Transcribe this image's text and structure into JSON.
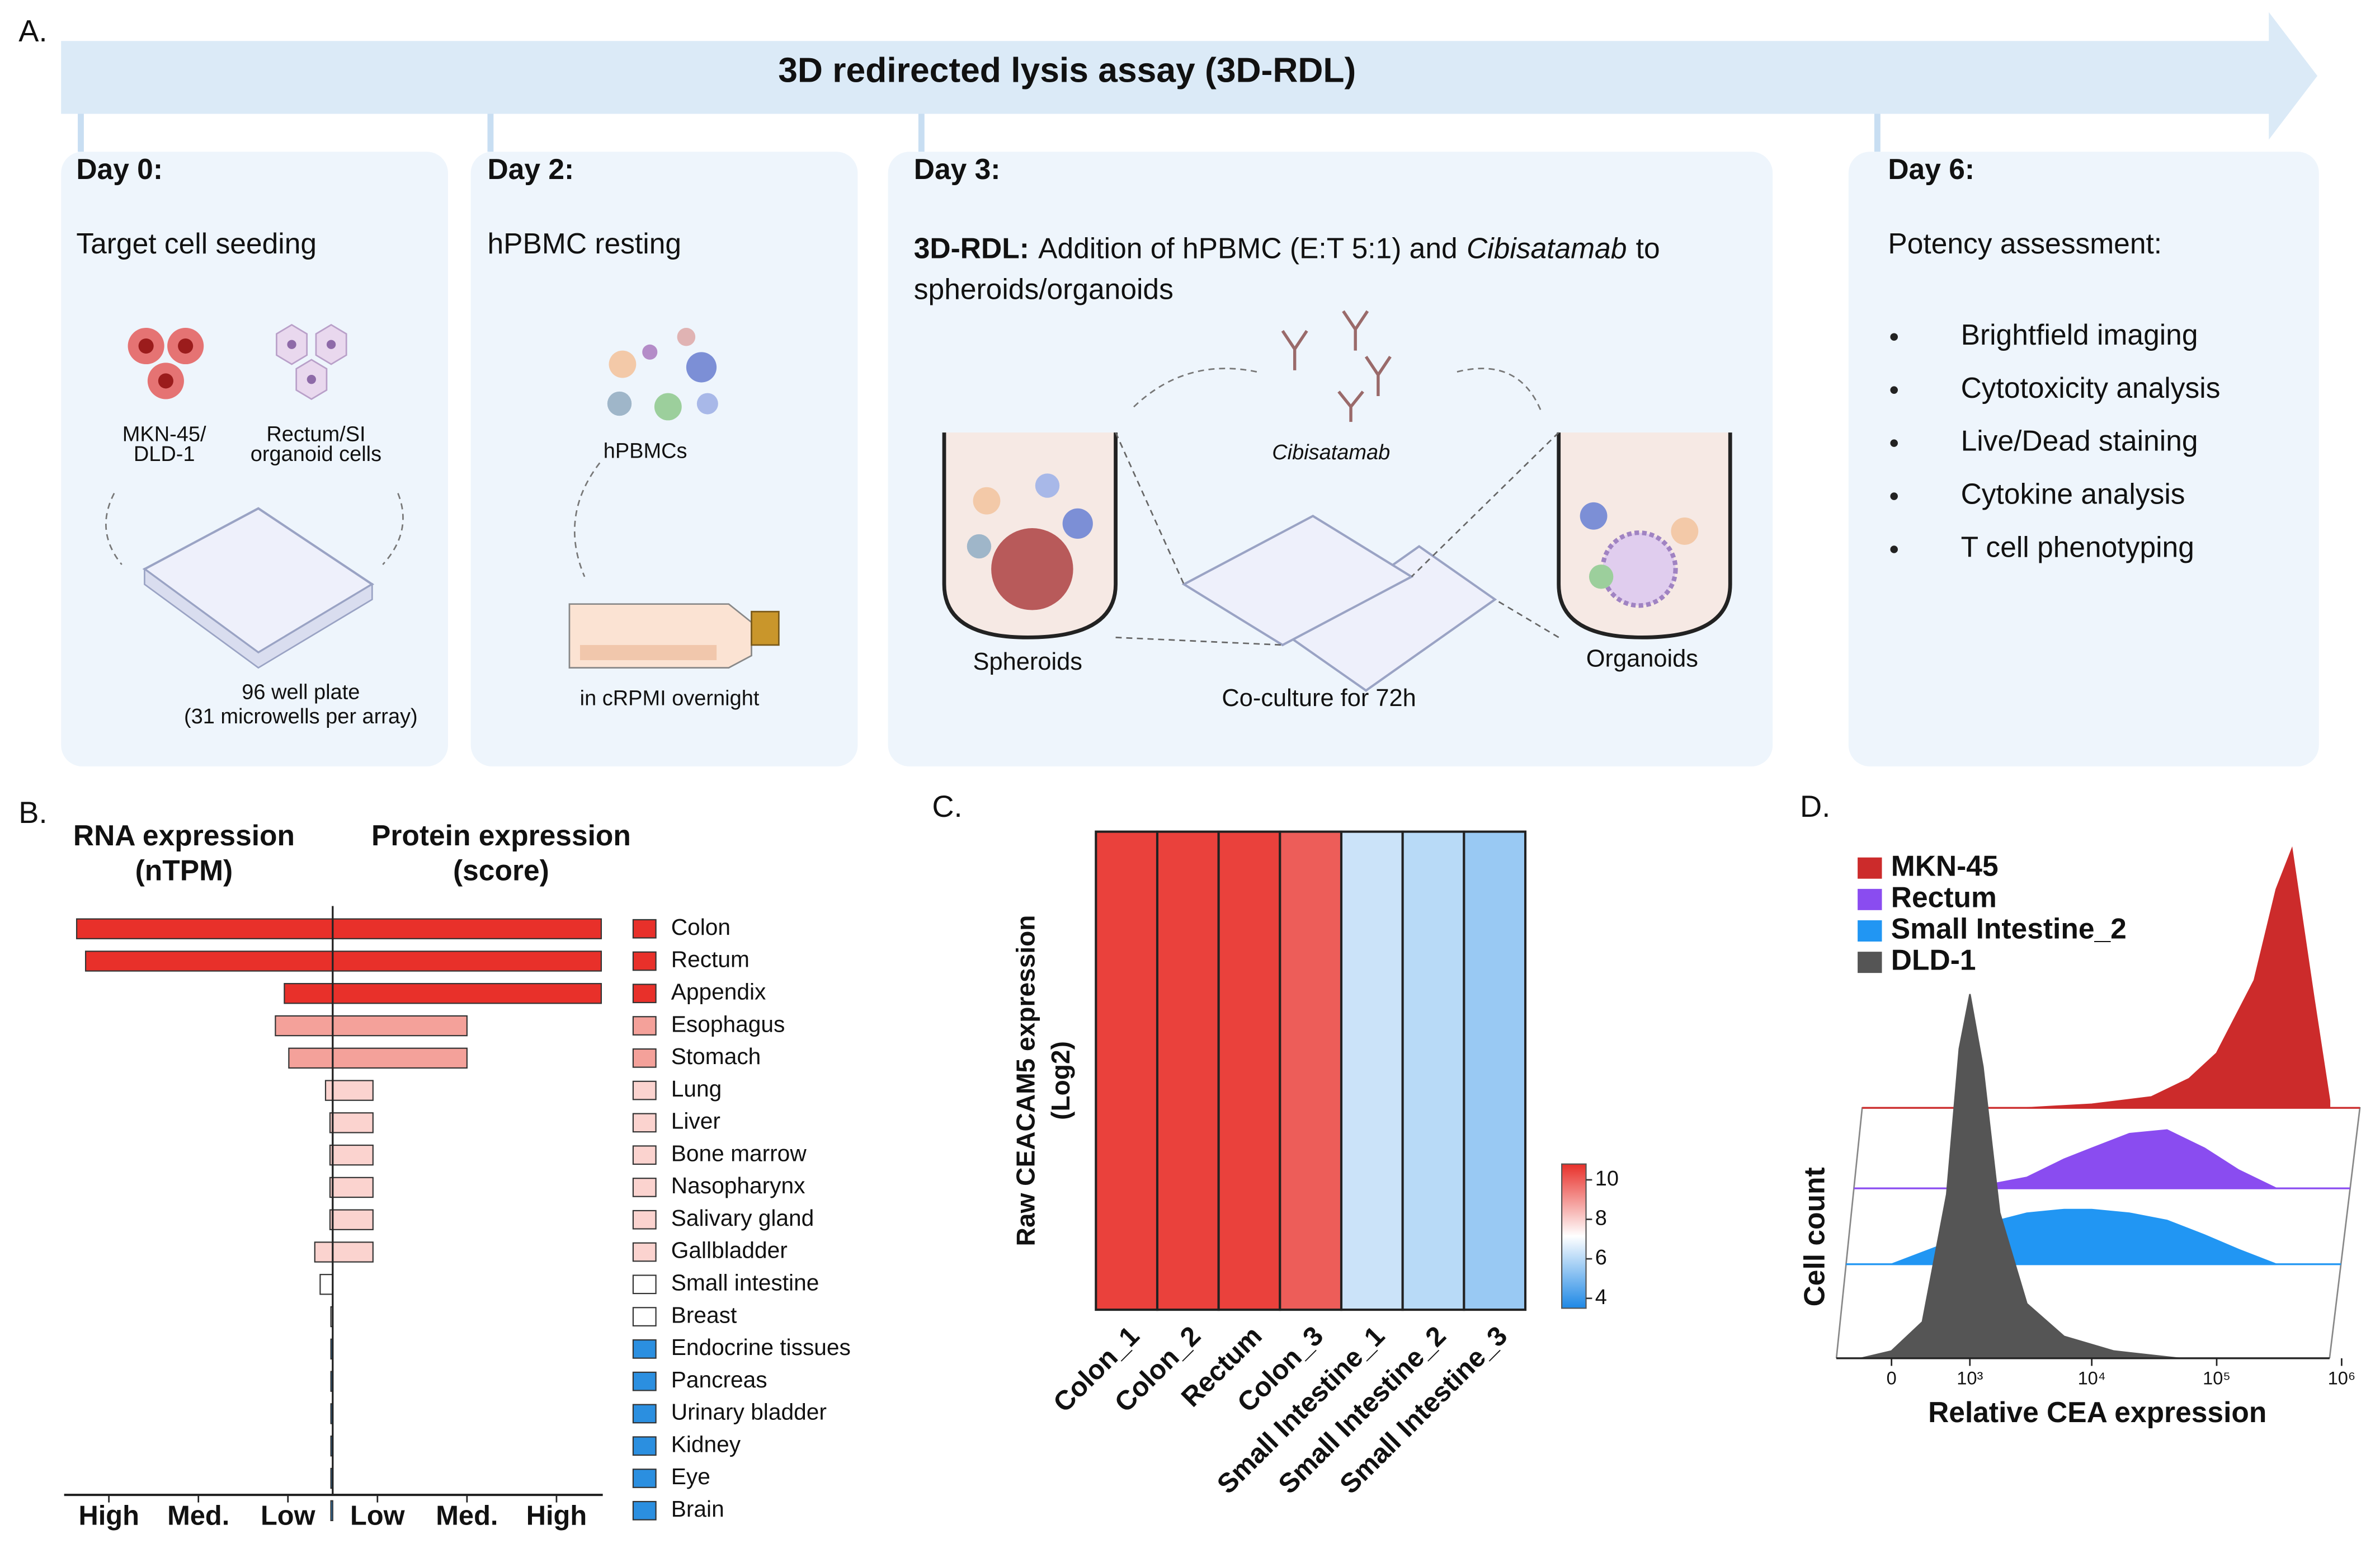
{
  "figure": {
    "panel_label": "A.",
    "title": "3D redirected lysis assay (3D-RDL)",
    "steps": [
      {
        "day": "Day 0:",
        "task": "Target cell seeding",
        "captions": [
          "MKN-45/",
          "DLD-1",
          "Rectum/SI",
          "organoid cells",
          "96 well plate",
          "(31 microwells per array)"
        ]
      },
      {
        "day": "Day 2:",
        "task": "hPBMC resting",
        "captions": [
          "hPBMCs",
          "in cRPMI overnight"
        ]
      },
      {
        "day": "Day 3:",
        "task_lead": "3D-RDL:",
        "task_parts": [
          "Addition of hPBMC (E:T 5:1) and",
          "Cibisatamab",
          "to",
          "spheroids/organoids"
        ],
        "captions": [
          "Cibisatamab",
          "Spheroids",
          "Co-culture for 72h",
          "Organoids"
        ]
      },
      {
        "day": "Day 6:",
        "task": "Potency assessment:",
        "items": [
          "Brightfield imaging",
          "Cytotoxicity analysis",
          "Live/Dead staining",
          "Cytokine analysis",
          "T cell phenotyping"
        ]
      }
    ]
  },
  "chart_data": [
    {
      "type": "bar",
      "panel_label": "B.",
      "categories": [
        "Colon",
        "Rectum",
        "Appendix",
        "Esophagus",
        "Stomach",
        "Lung",
        "Liver",
        "Bone marrow",
        "Nasopharynx",
        "Salivary gland",
        "Gallbladder",
        "Small intestine",
        "Breast",
        "Endocrine tissues",
        "Pancreas",
        "Urinary bladder",
        "Kidney",
        "Eye",
        "Brain"
      ],
      "colors": [
        "#e8302a",
        "#e8302a",
        "#e8302a",
        "#f4a19a",
        "#f4a19a",
        "#fbd3cf",
        "#fbd3cf",
        "#fbd3cf",
        "#fbd3cf",
        "#fbd3cf",
        "#fbd3cf",
        "#ffffff",
        "#ffffff",
        "#2b8fe0",
        "#2b8fe0",
        "#2b8fe0",
        "#2b8fe0",
        "#2b8fe0",
        "#2b8fe0"
      ],
      "series": [
        {
          "name": "RNA expression",
          "unit": "(nTPM)",
          "values": [
            2.86,
            2.76,
            0.54,
            0.64,
            0.49,
            0.08,
            0.03,
            0.03,
            0.03,
            0.03,
            0.2,
            0.14,
            0.02,
            0.02,
            0.02,
            0.02,
            0.02,
            0.02,
            0.02
          ]
        },
        {
          "name": "Protein expression",
          "unit": "(score)",
          "values": [
            3,
            3,
            3,
            1.5,
            1.5,
            0.45,
            0.45,
            0.45,
            0.45,
            0.45,
            0.45,
            0,
            0,
            0,
            0,
            0,
            0,
            0,
            0
          ]
        }
      ],
      "xlim": [
        0,
        3
      ],
      "xticks": [
        {
          "value": 0.5,
          "label": "Low"
        },
        {
          "value": 1.5,
          "label": "Med."
        },
        {
          "value": 2.5,
          "label": "High"
        }
      ]
    },
    {
      "type": "heatmap",
      "panel_label": "C.",
      "ylabel": [
        "Raw CEACAM5 expression",
        "(Log2)"
      ],
      "categories": [
        "Colon_1",
        "Colon_2",
        "Rectum",
        "Colon_3",
        "Small Intestine_1",
        "Small Intestine_2",
        "Small Intestine_3"
      ],
      "values": [
        10.5,
        10.5,
        10.5,
        10.0,
        6.3,
        6.0,
        5.5
      ],
      "colormap": [
        "#1e88e5",
        "#ffffff",
        "#e8302a"
      ],
      "clim": [
        3.5,
        10.8
      ],
      "cticks": [
        4,
        6,
        8,
        10
      ]
    },
    {
      "type": "density",
      "panel_label": "D.",
      "xlabel": "Relative CEA expression",
      "ylabel": "Cell count",
      "xscale": "asinh",
      "xlim": [
        -600,
        800000
      ],
      "ylim": [
        0,
        100
      ],
      "xticks": [
        0,
        {
          "value": 1000,
          "label": "10³"
        },
        {
          "value": 10000,
          "label": "10⁴"
        },
        {
          "value": 100000,
          "label": "10⁵"
        },
        {
          "value": 1000000,
          "label": "10⁶"
        }
      ],
      "series": [
        {
          "name": "MKN-45",
          "color": "#cc2b2b",
          "x": [
            3000,
            10000,
            30000,
            60000,
            100000,
            200000,
            300000,
            400000,
            600000,
            800000
          ],
          "values": [
            0,
            1,
            3,
            8,
            15,
            35,
            60,
            71,
            30,
            2
          ]
        },
        {
          "name": "Rectum",
          "color": "#8a4cf0",
          "x": [
            1000,
            3000,
            6000,
            10000,
            20000,
            40000,
            80000,
            150000,
            300000
          ],
          "values": [
            0,
            3,
            8,
            11,
            15,
            16,
            11,
            5,
            0
          ]
        },
        {
          "name": "Small Intestine_2",
          "color": "#2196f3",
          "x": [
            0,
            500,
            1000,
            3000,
            6000,
            10000,
            20000,
            40000,
            80000,
            150000,
            300000
          ],
          "values": [
            0,
            5,
            10,
            14,
            15,
            15,
            14,
            12,
            8,
            4,
            0
          ]
        },
        {
          "name": "DLD-1",
          "color": "#555555",
          "x": [
            -300,
            0,
            300,
            600,
            800,
            1000,
            1300,
            1800,
            3000,
            6000,
            15000,
            50000
          ],
          "values": [
            0,
            2,
            10,
            45,
            85,
            100,
            80,
            40,
            15,
            6,
            2,
            0
          ]
        }
      ]
    }
  ]
}
